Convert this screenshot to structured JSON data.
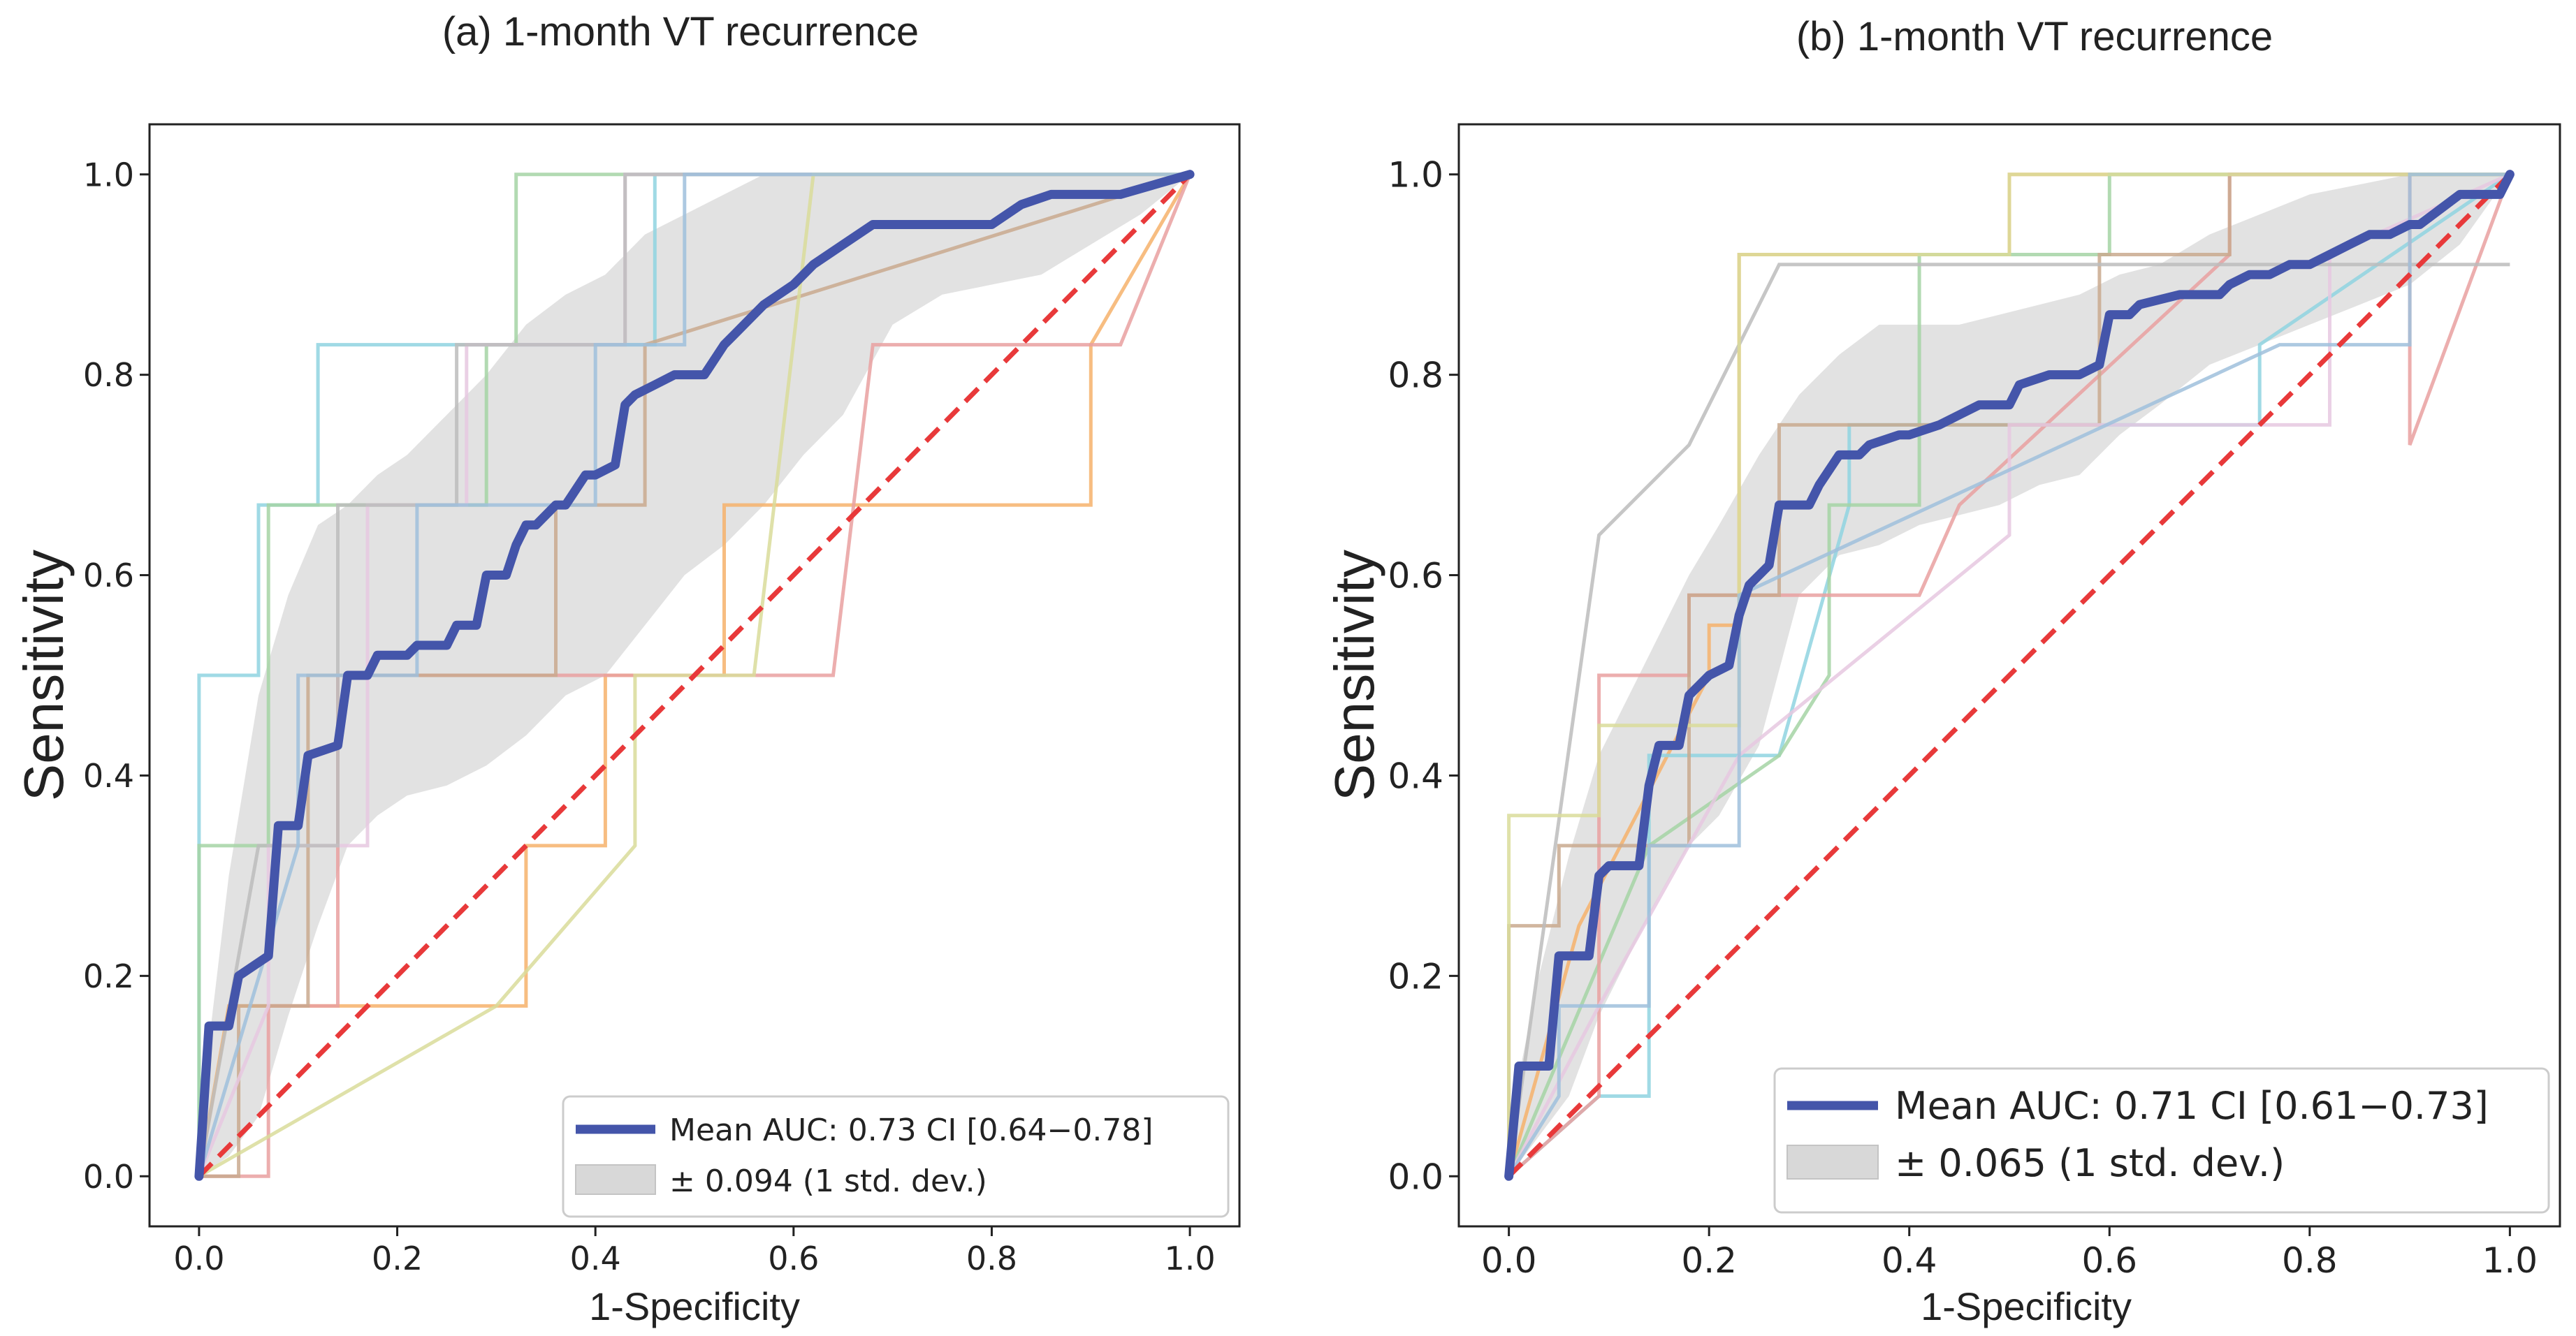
{
  "chart_data": [
    {
      "type": "line",
      "title": "(a) 1-month VT recurrence",
      "xlabel": "1-Specificity",
      "ylabel": "Sensitivity",
      "xlim": [
        -0.05,
        1.05
      ],
      "ylim": [
        -0.05,
        1.05
      ],
      "xticks": [
        "0.0",
        "0.2",
        "0.4",
        "0.6",
        "0.8",
        "1.0"
      ],
      "yticks": [
        "0.0",
        "0.2",
        "0.4",
        "0.6",
        "0.8",
        "1.0"
      ],
      "legend_position": "bottom-right",
      "legend": {
        "mean_label": "Mean AUC: 0.73 CI [0.64−0.78]",
        "std_label": "± 0.094 (1 std. dev.)"
      },
      "colors": {
        "mean": "#4455aa",
        "chance": "#e8393a",
        "band": "#d8d8d8"
      },
      "mean_curve": {
        "x": [
          0,
          0.01,
          0.03,
          0.04,
          0.07,
          0.08,
          0.1,
          0.11,
          0.14,
          0.15,
          0.17,
          0.18,
          0.21,
          0.22,
          0.25,
          0.26,
          0.28,
          0.29,
          0.31,
          0.32,
          0.33,
          0.34,
          0.36,
          0.37,
          0.39,
          0.4,
          0.42,
          0.43,
          0.44,
          0.46,
          0.48,
          0.51,
          0.53,
          0.54,
          0.57,
          0.6,
          0.62,
          0.65,
          0.68,
          0.73,
          0.8,
          0.83,
          0.86,
          0.88,
          0.93,
          1.0
        ],
        "y": [
          0,
          0.15,
          0.15,
          0.2,
          0.22,
          0.35,
          0.35,
          0.42,
          0.43,
          0.5,
          0.5,
          0.52,
          0.52,
          0.53,
          0.53,
          0.55,
          0.55,
          0.6,
          0.6,
          0.63,
          0.65,
          0.65,
          0.67,
          0.67,
          0.7,
          0.7,
          0.71,
          0.77,
          0.78,
          0.79,
          0.8,
          0.8,
          0.83,
          0.84,
          0.87,
          0.89,
          0.91,
          0.93,
          0.95,
          0.95,
          0.95,
          0.97,
          0.98,
          0.98,
          0.98,
          1.0
        ]
      },
      "std_band": {
        "x": [
          0,
          0.03,
          0.06,
          0.09,
          0.12,
          0.15,
          0.18,
          0.21,
          0.25,
          0.29,
          0.33,
          0.37,
          0.41,
          0.45,
          0.49,
          0.53,
          0.57,
          0.61,
          0.65,
          0.7,
          0.75,
          0.8,
          0.85,
          0.9,
          0.95,
          1.0
        ],
        "upper": [
          0.05,
          0.3,
          0.48,
          0.58,
          0.65,
          0.67,
          0.7,
          0.72,
          0.76,
          0.8,
          0.85,
          0.88,
          0.9,
          0.94,
          0.96,
          0.98,
          1.0,
          1.0,
          1.0,
          1.0,
          1.0,
          1.0,
          1.0,
          1.0,
          1.0,
          1.0
        ],
        "lower": [
          0,
          0.02,
          0.06,
          0.16,
          0.25,
          0.33,
          0.36,
          0.38,
          0.39,
          0.41,
          0.44,
          0.48,
          0.5,
          0.55,
          0.6,
          0.63,
          0.67,
          0.72,
          0.76,
          0.85,
          0.88,
          0.89,
          0.9,
          0.93,
          0.96,
          1.0
        ]
      },
      "fold_curves": [
        {
          "color": "#8fd4e0",
          "x": [
            0,
            0,
            0.06,
            0.06,
            0.12,
            0.12,
            0.46,
            0.46,
            0.52,
            1.0
          ],
          "y": [
            0,
            0.5,
            0.5,
            0.67,
            0.67,
            0.83,
            0.83,
            1.0,
            1.0,
            1.0
          ]
        },
        {
          "color": "#f6b26b",
          "x": [
            0,
            0.03,
            0.33,
            0.33,
            0.41,
            0.41,
            0.53,
            0.53,
            0.9,
            0.9,
            1.0
          ],
          "y": [
            0,
            0.17,
            0.17,
            0.33,
            0.33,
            0.5,
            0.5,
            0.67,
            0.67,
            0.83,
            1.0
          ]
        },
        {
          "color": "#a4d4a4",
          "x": [
            0,
            0,
            0.07,
            0.07,
            0.29,
            0.29,
            0.32,
            0.32,
            0.55,
            1.0
          ],
          "y": [
            0,
            0.33,
            0.33,
            0.67,
            0.67,
            0.83,
            0.83,
            1.0,
            1.0,
            1.0
          ]
        },
        {
          "color": "#e9a0a0",
          "x": [
            0,
            0.07,
            0.07,
            0.14,
            0.14,
            0.64,
            0.68,
            0.68,
            0.93,
            1.0
          ],
          "y": [
            0,
            0,
            0.17,
            0.17,
            0.5,
            0.5,
            0.83,
            0.83,
            0.83,
            1.0
          ]
        },
        {
          "color": "#c9a98e",
          "x": [
            0,
            0.04,
            0.04,
            0.11,
            0.11,
            0.36,
            0.36,
            0.45,
            0.45,
            1.0
          ],
          "y": [
            0,
            0.0,
            0.17,
            0.17,
            0.5,
            0.5,
            0.67,
            0.67,
            0.83,
            1.0
          ]
        },
        {
          "color": "#e6c8e0",
          "x": [
            0,
            0.07,
            0.07,
            0.17,
            0.17,
            0.27,
            0.27,
            0.43,
            0.43,
            1.0
          ],
          "y": [
            0,
            0.17,
            0.33,
            0.33,
            0.67,
            0.67,
            0.83,
            0.83,
            1.0,
            1.0
          ]
        },
        {
          "color": "#bcbcbc",
          "x": [
            0,
            0.06,
            0.06,
            0.14,
            0.14,
            0.26,
            0.26,
            0.43,
            0.43,
            1.0
          ],
          "y": [
            0,
            0.33,
            0.33,
            0.33,
            0.67,
            0.67,
            0.83,
            0.83,
            1.0,
            1.0
          ]
        },
        {
          "color": "#d9dc9a",
          "x": [
            0,
            0.3,
            0.3,
            0.44,
            0.44,
            0.56,
            0.62,
            0.62,
            1.0
          ],
          "y": [
            0,
            0.17,
            0.17,
            0.33,
            0.5,
            0.5,
            1.0,
            1.0,
            1.0
          ]
        },
        {
          "color": "#9fbfdc",
          "x": [
            0,
            0.1,
            0.1,
            0.22,
            0.22,
            0.4,
            0.4,
            0.49,
            0.49,
            1.0
          ],
          "y": [
            0,
            0.33,
            0.5,
            0.5,
            0.67,
            0.67,
            0.83,
            0.83,
            1.0,
            1.0
          ]
        }
      ]
    },
    {
      "type": "line",
      "title": "(b) 1-month VT recurrence",
      "xlabel": "1-Specificity",
      "ylabel": "Sensitivity",
      "xlim": [
        -0.05,
        1.05
      ],
      "ylim": [
        -0.05,
        1.05
      ],
      "xticks": [
        "0.0",
        "0.2",
        "0.4",
        "0.6",
        "0.8",
        "1.0"
      ],
      "yticks": [
        "0.0",
        "0.2",
        "0.4",
        "0.6",
        "0.8",
        "1.0"
      ],
      "legend_position": "bottom-right",
      "legend": {
        "mean_label": "Mean AUC: 0.71 CI [0.61−0.73]",
        "std_label": "± 0.065 (1 std. dev.)"
      },
      "colors": {
        "mean": "#4455aa",
        "chance": "#e8393a",
        "band": "#d8d8d8"
      },
      "mean_curve": {
        "x": [
          0,
          0.01,
          0.04,
          0.05,
          0.08,
          0.09,
          0.1,
          0.13,
          0.14,
          0.15,
          0.17,
          0.18,
          0.19,
          0.2,
          0.22,
          0.23,
          0.24,
          0.26,
          0.27,
          0.3,
          0.31,
          0.33,
          0.35,
          0.36,
          0.39,
          0.4,
          0.43,
          0.45,
          0.47,
          0.5,
          0.51,
          0.54,
          0.57,
          0.59,
          0.6,
          0.62,
          0.63,
          0.67,
          0.71,
          0.72,
          0.74,
          0.76,
          0.78,
          0.8,
          0.82,
          0.84,
          0.86,
          0.88,
          0.9,
          0.91,
          0.95,
          0.96,
          0.99,
          1.0
        ],
        "y": [
          0,
          0.11,
          0.11,
          0.22,
          0.22,
          0.3,
          0.31,
          0.31,
          0.39,
          0.43,
          0.43,
          0.48,
          0.49,
          0.5,
          0.51,
          0.56,
          0.59,
          0.61,
          0.67,
          0.67,
          0.69,
          0.72,
          0.72,
          0.73,
          0.74,
          0.74,
          0.75,
          0.76,
          0.77,
          0.77,
          0.79,
          0.8,
          0.8,
          0.81,
          0.86,
          0.86,
          0.87,
          0.88,
          0.88,
          0.89,
          0.9,
          0.9,
          0.91,
          0.91,
          0.92,
          0.93,
          0.94,
          0.94,
          0.95,
          0.95,
          0.98,
          0.98,
          0.98,
          1.0
        ]
      },
      "std_band": {
        "x": [
          0,
          0.03,
          0.06,
          0.09,
          0.12,
          0.15,
          0.18,
          0.21,
          0.25,
          0.29,
          0.33,
          0.37,
          0.41,
          0.45,
          0.49,
          0.53,
          0.57,
          0.61,
          0.65,
          0.7,
          0.75,
          0.8,
          0.85,
          0.9,
          0.95,
          1.0
        ],
        "upper": [
          0.05,
          0.2,
          0.32,
          0.42,
          0.48,
          0.54,
          0.6,
          0.65,
          0.72,
          0.78,
          0.82,
          0.85,
          0.85,
          0.85,
          0.86,
          0.87,
          0.88,
          0.9,
          0.91,
          0.94,
          0.96,
          0.98,
          0.99,
          1.0,
          1.0,
          1.0
        ],
        "lower": [
          0,
          0.04,
          0.08,
          0.16,
          0.22,
          0.28,
          0.33,
          0.36,
          0.43,
          0.58,
          0.62,
          0.63,
          0.65,
          0.66,
          0.67,
          0.69,
          0.7,
          0.74,
          0.77,
          0.81,
          0.83,
          0.85,
          0.87,
          0.89,
          0.93,
          1.0
        ]
      },
      "fold_curves": [
        {
          "color": "#f6b26b",
          "x": [
            0,
            0.07,
            0.07,
            0.2,
            0.2,
            0.23,
            0.23,
            0.5,
            0.5,
            1.0
          ],
          "y": [
            0,
            0.25,
            0.25,
            0.5,
            0.55,
            0.55,
            0.92,
            0.92,
            1.0,
            1.0
          ]
        },
        {
          "color": "#8fd4e0",
          "x": [
            0,
            0.09,
            0.09,
            0.14,
            0.14,
            0.27,
            0.34,
            0.34,
            0.75,
            0.75,
            1.0
          ],
          "y": [
            0,
            0.08,
            0.08,
            0.08,
            0.42,
            0.42,
            0.67,
            0.75,
            0.75,
            0.83,
            1.0
          ]
        },
        {
          "color": "#a4d4a4",
          "x": [
            0,
            0.14,
            0.14,
            0.27,
            0.27,
            0.32,
            0.32,
            0.41,
            0.41,
            0.6,
            0.6,
            1.0
          ],
          "y": [
            0,
            0.33,
            0.33,
            0.42,
            0.42,
            0.5,
            0.67,
            0.67,
            0.92,
            0.92,
            1.0,
            1.0
          ]
        },
        {
          "color": "#e9a0a0",
          "x": [
            0,
            0.09,
            0.09,
            0.18,
            0.18,
            0.32,
            0.41,
            0.45,
            0.45,
            0.72,
            0.72,
            0.9,
            0.9,
            1.0
          ],
          "y": [
            0,
            0.08,
            0.5,
            0.5,
            0.58,
            0.58,
            0.58,
            0.67,
            0.67,
            0.92,
            1.0,
            1.0,
            0.73,
            1.0
          ]
        },
        {
          "color": "#c9a98e",
          "x": [
            0,
            0,
            0.05,
            0.05,
            0.18,
            0.18,
            0.27,
            0.27,
            0.59,
            0.59,
            0.72,
            0.72,
            1.0
          ],
          "y": [
            0,
            0.25,
            0.25,
            0.33,
            0.33,
            0.58,
            0.58,
            0.75,
            0.75,
            0.92,
            0.92,
            1.0,
            1.0
          ]
        },
        {
          "color": "#e6c8e0",
          "x": [
            0,
            0.09,
            0.09,
            0.23,
            0.23,
            0.5,
            0.5,
            0.82,
            0.82,
            1.0
          ],
          "y": [
            0,
            0.17,
            0.17,
            0.42,
            0.42,
            0.64,
            0.75,
            0.75,
            0.92,
            1.0
          ]
        },
        {
          "color": "#bcbcbc",
          "x": [
            0,
            0.09,
            0.09,
            0.18,
            0.18,
            0.27,
            0.27,
            0.59,
            0.59,
            1.0
          ],
          "y": [
            0,
            0.64,
            0.64,
            0.73,
            0.73,
            0.91,
            0.91,
            0.91,
            0.91,
            0.91
          ]
        },
        {
          "color": "#d9dc9a",
          "x": [
            0,
            0,
            0.09,
            0.09,
            0.23,
            0.23,
            0.5,
            0.5,
            1.0
          ],
          "y": [
            0,
            0.36,
            0.36,
            0.45,
            0.45,
            0.92,
            0.92,
            1.0,
            1.0
          ]
        },
        {
          "color": "#9fbfdc",
          "x": [
            0,
            0.05,
            0.05,
            0.14,
            0.14,
            0.23,
            0.23,
            0.77,
            0.77,
            0.9,
            0.9,
            1.0
          ],
          "y": [
            0,
            0.08,
            0.17,
            0.17,
            0.33,
            0.33,
            0.58,
            0.83,
            0.83,
            0.83,
            1.0,
            1.0
          ]
        }
      ]
    }
  ]
}
